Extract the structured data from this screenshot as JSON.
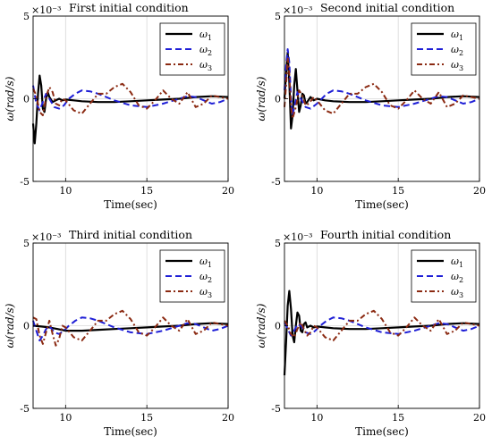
{
  "colors": {
    "w1": "#000000",
    "w2": "#1f1fd6",
    "w3": "#8b2a12",
    "grid": "#d8d8d8"
  },
  "chart_data": [
    {
      "type": "line",
      "title": "First initial condition",
      "multiplier": "×10⁻³",
      "xlabel": "Time(sec)",
      "ylabel": "ω(rad/s)",
      "xlim": [
        8,
        20
      ],
      "ylim": [
        -5,
        5
      ],
      "xticks": [
        "10",
        "15",
        "20"
      ],
      "yticks": [
        "-5",
        "0",
        "5"
      ],
      "grid": true,
      "legend_position": "top-right",
      "series": [
        {
          "name": "ω",
          "sub": "1",
          "key": "w1",
          "style": "solid",
          "x": [
            8,
            8.1,
            8.2,
            8.3,
            8.4,
            8.5,
            8.6,
            8.7,
            8.8,
            8.9,
            9.0,
            9.2,
            9.4,
            9.6,
            9.8,
            10,
            10.5,
            11,
            12,
            13,
            14,
            15,
            16,
            17,
            18,
            19,
            20
          ],
          "y": [
            -1.5,
            -2.7,
            -1.5,
            0.3,
            1.4,
            0.8,
            -0.6,
            -0.8,
            0.0,
            0.4,
            0.1,
            -0.2,
            -0.1,
            0.0,
            -0.1,
            -0.05,
            -0.1,
            -0.15,
            -0.2,
            -0.2,
            -0.15,
            -0.1,
            -0.05,
            0.0,
            0.1,
            0.15,
            0.1
          ]
        },
        {
          "name": "ω",
          "sub": "2",
          "key": "w2",
          "style": "dashed",
          "x": [
            8,
            8.2,
            8.4,
            8.6,
            8.8,
            9.0,
            9.3,
            9.6,
            9.9,
            10.2,
            10.6,
            11,
            11.5,
            12,
            13,
            14,
            15,
            16,
            17,
            17.5,
            18,
            18.5,
            19,
            19.5,
            20
          ],
          "y": [
            0.8,
            -0.3,
            -0.7,
            -0.2,
            0.3,
            0.0,
            -0.5,
            -0.6,
            -0.4,
            0.0,
            0.3,
            0.5,
            0.45,
            0.3,
            -0.1,
            -0.4,
            -0.5,
            -0.3,
            0.0,
            0.15,
            0.1,
            -0.1,
            -0.3,
            -0.2,
            0.0
          ]
        },
        {
          "name": "ω",
          "sub": "3",
          "key": "w3",
          "style": "dashdot",
          "x": [
            8,
            8.2,
            8.4,
            8.6,
            8.8,
            9.0,
            9.2,
            9.4,
            9.6,
            9.8,
            10,
            10.5,
            11,
            11.5,
            12,
            12.5,
            13,
            13.5,
            14,
            14.5,
            15,
            15.5,
            16,
            16.5,
            17,
            17.5,
            18,
            18.5,
            19,
            19.5,
            20
          ],
          "y": [
            0.6,
            0.2,
            -0.8,
            -1.0,
            0.1,
            0.7,
            0.4,
            -0.3,
            -0.4,
            0.0,
            -0.1,
            -0.7,
            -0.9,
            -0.3,
            0.3,
            0.3,
            0.7,
            0.9,
            0.4,
            -0.4,
            -0.6,
            -0.1,
            0.5,
            0.0,
            -0.3,
            0.4,
            -0.5,
            -0.3,
            0.2,
            0.1,
            0.0
          ]
        }
      ]
    },
    {
      "type": "line",
      "title": "Second initial condition",
      "multiplier": "×10⁻³",
      "xlabel": "Time(sec)",
      "ylabel": "ω(rad/s)",
      "xlim": [
        8,
        20
      ],
      "ylim": [
        -5,
        5
      ],
      "xticks": [
        "10",
        "15",
        "20"
      ],
      "yticks": [
        "-5",
        "0",
        "5"
      ],
      "grid": true,
      "legend_position": "top-right",
      "series": [
        {
          "name": "ω",
          "sub": "1",
          "key": "w1",
          "style": "solid",
          "x": [
            8,
            8.1,
            8.2,
            8.3,
            8.4,
            8.5,
            8.6,
            8.7,
            8.8,
            8.9,
            9.0,
            9.1,
            9.2,
            9.3,
            9.4,
            9.6,
            9.8,
            10,
            10.5,
            11,
            12,
            13,
            14,
            15,
            16,
            17,
            18,
            19,
            20
          ],
          "y": [
            0.0,
            1.5,
            2.8,
            1.0,
            -1.8,
            -1.0,
            0.8,
            1.8,
            0.5,
            -0.8,
            -0.4,
            0.3,
            0.2,
            -0.3,
            -0.2,
            0.1,
            -0.1,
            0.0,
            -0.1,
            -0.15,
            -0.2,
            -0.2,
            -0.15,
            -0.1,
            -0.05,
            0.0,
            0.1,
            0.15,
            0.1
          ]
        },
        {
          "name": "ω",
          "sub": "2",
          "key": "w2",
          "style": "dashed",
          "x": [
            8,
            8.1,
            8.2,
            8.3,
            8.4,
            8.5,
            8.6,
            8.8,
            9.0,
            9.3,
            9.6,
            10,
            10.6,
            11,
            11.5,
            12,
            13,
            14,
            15,
            16,
            17,
            17.5,
            18,
            18.5,
            19,
            19.5,
            20
          ],
          "y": [
            0.5,
            2.0,
            3.0,
            2.2,
            0.0,
            -1.0,
            -0.5,
            0.4,
            0.0,
            -0.5,
            -0.6,
            -0.3,
            0.3,
            0.5,
            0.45,
            0.3,
            -0.1,
            -0.4,
            -0.5,
            -0.3,
            0.0,
            0.15,
            0.1,
            -0.1,
            -0.3,
            -0.2,
            0.0
          ]
        },
        {
          "name": "ω",
          "sub": "3",
          "key": "w3",
          "style": "dashdot",
          "x": [
            8,
            8.1,
            8.2,
            8.3,
            8.4,
            8.5,
            8.7,
            8.9,
            9.1,
            9.3,
            9.5,
            9.8,
            10,
            10.5,
            11,
            11.5,
            12,
            12.5,
            13,
            13.5,
            14,
            14.5,
            15,
            15.5,
            16,
            16.5,
            17,
            17.5,
            18,
            18.5,
            19,
            19.5,
            20
          ],
          "y": [
            -0.5,
            0.8,
            2.5,
            1.5,
            -0.5,
            -1.2,
            -0.5,
            0.5,
            0.2,
            -0.4,
            -0.3,
            0.1,
            -0.1,
            -0.7,
            -0.9,
            -0.3,
            0.3,
            0.3,
            0.7,
            0.9,
            0.4,
            -0.4,
            -0.6,
            -0.1,
            0.5,
            0.0,
            -0.3,
            0.4,
            -0.5,
            -0.3,
            0.2,
            0.1,
            0.0
          ]
        }
      ]
    },
    {
      "type": "line",
      "title": "Third initial condition",
      "multiplier": "×10⁻³",
      "xlabel": "Time(sec)",
      "ylabel": "ω(rad/s)",
      "xlim": [
        8,
        20
      ],
      "ylim": [
        -5,
        5
      ],
      "xticks": [
        "10",
        "15",
        "20"
      ],
      "yticks": [
        "-5",
        "0",
        "5"
      ],
      "grid": true,
      "legend_position": "top-right",
      "series": [
        {
          "name": "ω",
          "sub": "1",
          "key": "w1",
          "style": "solid",
          "x": [
            8,
            8.5,
            9,
            9.5,
            10,
            10.5,
            11,
            12,
            13,
            14,
            15,
            16,
            17,
            18,
            19,
            20
          ],
          "y": [
            0.0,
            -0.05,
            -0.1,
            -0.2,
            -0.3,
            -0.3,
            -0.3,
            -0.25,
            -0.2,
            -0.15,
            -0.1,
            -0.05,
            0.0,
            0.1,
            0.15,
            0.1
          ]
        },
        {
          "name": "ω",
          "sub": "2",
          "key": "w2",
          "style": "dashed",
          "x": [
            8,
            8.2,
            8.4,
            8.6,
            8.8,
            9.0,
            9.3,
            9.6,
            9.9,
            10.2,
            10.6,
            11,
            11.5,
            12,
            13,
            14,
            15,
            16,
            17,
            17.5,
            18,
            18.5,
            19,
            19.5,
            20
          ],
          "y": [
            0.3,
            -0.3,
            -0.9,
            -0.6,
            -0.2,
            0.0,
            -0.4,
            -0.5,
            -0.3,
            0.0,
            0.3,
            0.5,
            0.45,
            0.3,
            -0.1,
            -0.4,
            -0.5,
            -0.3,
            0.0,
            0.15,
            0.1,
            -0.1,
            -0.3,
            -0.2,
            0.0
          ]
        },
        {
          "name": "ω",
          "sub": "3",
          "key": "w3",
          "style": "dashdot",
          "x": [
            8,
            8.2,
            8.4,
            8.6,
            8.8,
            9.0,
            9.2,
            9.4,
            9.6,
            9.8,
            10,
            10.5,
            11,
            11.5,
            12,
            12.5,
            13,
            13.5,
            14,
            14.5,
            15,
            15.5,
            16,
            16.5,
            17,
            17.5,
            18,
            18.5,
            19,
            19.5,
            20
          ],
          "y": [
            0.5,
            0.4,
            -0.6,
            -1.1,
            -0.4,
            0.3,
            -0.5,
            -1.2,
            -0.8,
            0.0,
            -0.1,
            -0.7,
            -0.9,
            -0.3,
            0.3,
            0.3,
            0.7,
            0.9,
            0.4,
            -0.4,
            -0.6,
            -0.1,
            0.5,
            0.0,
            -0.3,
            0.4,
            -0.5,
            -0.3,
            0.2,
            0.1,
            0.0
          ]
        }
      ]
    },
    {
      "type": "line",
      "title": "Fourth initial condition",
      "multiplier": "×10⁻³",
      "xlabel": "Time(sec)",
      "ylabel": "ω(rad/s)",
      "xlim": [
        8,
        20
      ],
      "ylim": [
        -5,
        5
      ],
      "xticks": [
        "10",
        "15",
        "20"
      ],
      "yticks": [
        "-5",
        "0",
        "5"
      ],
      "grid": true,
      "legend_position": "top-right",
      "series": [
        {
          "name": "ω",
          "sub": "1",
          "key": "w1",
          "style": "solid",
          "x": [
            8,
            8.1,
            8.2,
            8.3,
            8.4,
            8.5,
            8.6,
            8.7,
            8.8,
            8.9,
            9.0,
            9.1,
            9.2,
            9.3,
            9.4,
            9.6,
            9.8,
            10,
            10.5,
            11,
            12,
            13,
            14,
            15,
            16,
            17,
            18,
            19,
            20
          ],
          "y": [
            -3.0,
            -1.0,
            1.2,
            2.1,
            1.0,
            -0.6,
            -1.0,
            0.0,
            0.8,
            0.6,
            -0.3,
            -0.4,
            0.1,
            0.2,
            -0.1,
            0.0,
            -0.1,
            -0.05,
            -0.1,
            -0.15,
            -0.2,
            -0.2,
            -0.15,
            -0.1,
            -0.05,
            0.0,
            0.1,
            0.15,
            0.1
          ]
        },
        {
          "name": "ω",
          "sub": "2",
          "key": "w2",
          "style": "dashed",
          "x": [
            8,
            8.2,
            8.4,
            8.6,
            8.8,
            9.0,
            9.3,
            9.6,
            9.9,
            10.2,
            10.6,
            11,
            11.5,
            12,
            13,
            14,
            15,
            16,
            17,
            17.5,
            18,
            18.5,
            19,
            19.5,
            20
          ],
          "y": [
            0.2,
            -0.2,
            -0.6,
            -0.3,
            0.1,
            0.0,
            -0.4,
            -0.5,
            -0.3,
            0.0,
            0.3,
            0.5,
            0.45,
            0.3,
            -0.1,
            -0.4,
            -0.5,
            -0.3,
            0.0,
            0.15,
            0.1,
            -0.1,
            -0.3,
            -0.2,
            0.0
          ]
        },
        {
          "name": "ω",
          "sub": "3",
          "key": "w3",
          "style": "dashdot",
          "x": [
            8,
            8.2,
            8.4,
            8.6,
            8.8,
            9.0,
            9.2,
            9.4,
            9.6,
            9.8,
            10,
            10.5,
            11,
            11.5,
            12,
            12.5,
            13,
            13.5,
            14,
            14.5,
            15,
            15.5,
            16,
            16.5,
            17,
            17.5,
            18,
            18.5,
            19,
            19.5,
            20
          ],
          "y": [
            0.3,
            0.0,
            -0.5,
            -0.7,
            -0.2,
            0.2,
            -0.2,
            -0.6,
            -0.4,
            0.0,
            -0.1,
            -0.7,
            -0.9,
            -0.3,
            0.3,
            0.3,
            0.7,
            0.9,
            0.4,
            -0.4,
            -0.6,
            -0.1,
            0.5,
            0.0,
            -0.3,
            0.4,
            -0.5,
            -0.3,
            0.2,
            0.1,
            0.0
          ]
        }
      ]
    }
  ]
}
